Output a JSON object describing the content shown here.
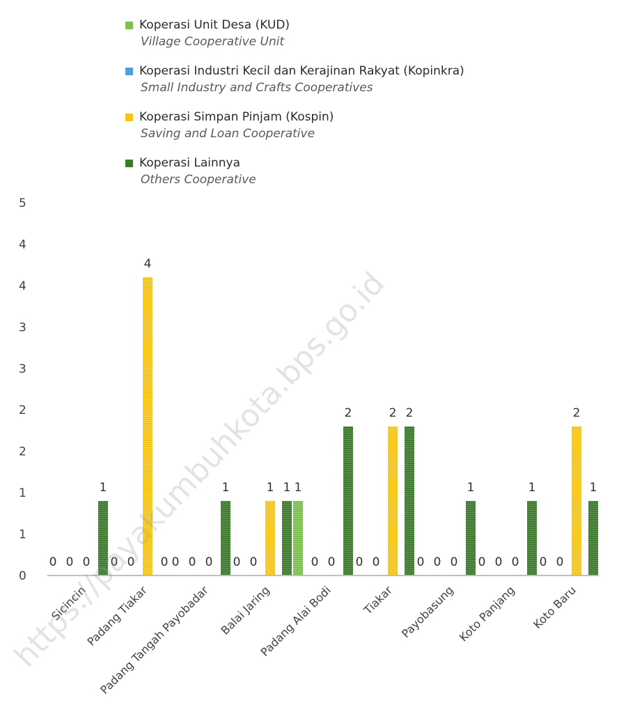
{
  "chart_data": {
    "type": "bar",
    "categories": [
      "Sicincin",
      "Padang Tiakar",
      "Padang Tangah Payobadar",
      "Balai Jaring",
      "Padang Alai Bodi",
      "Tiakar",
      "Payobasung",
      "Koto Panjang",
      "Koto Baru"
    ],
    "series": [
      {
        "name": "Koperasi Unit Desa (KUD)",
        "subtitle": "Village Cooperative Unit",
        "color": "#7dc04f",
        "values": [
          0,
          0,
          0,
          0,
          1,
          0,
          0,
          0,
          0
        ]
      },
      {
        "name": "Koperasi Industri Kecil dan Kerajinan Rakyat (Kopinkra)",
        "subtitle": "Small Industry and Crafts Cooperatives",
        "color": "#4f9fd9",
        "values": [
          0,
          0,
          0,
          0,
          0,
          0,
          0,
          0,
          0
        ]
      },
      {
        "name": "Koperasi Simpan Pinjam (Kospin)",
        "subtitle": "Saving and Loan Cooperative",
        "color": "#f5c518",
        "values": [
          0,
          4,
          0,
          1,
          0,
          2,
          0,
          0,
          2
        ]
      },
      {
        "name": "Koperasi Lainnya",
        "subtitle": "Others Cooperative",
        "color": "#3d7a2e",
        "values": [
          1,
          0,
          1,
          1,
          2,
          2,
          1,
          1,
          1
        ]
      }
    ],
    "data_labels": [
      [
        "0",
        "0",
        "0",
        "1"
      ],
      [
        "0",
        "0",
        "4",
        "0"
      ],
      [
        "0",
        "0",
        "0",
        "1"
      ],
      [
        "0",
        "0",
        "1",
        "1"
      ],
      [
        "1",
        "0",
        "0",
        "2"
      ],
      [
        "0",
        "0",
        "2",
        "2"
      ],
      [
        "0",
        "0",
        "0",
        "1"
      ],
      [
        "0",
        "0",
        "0",
        "1"
      ],
      [
        "0",
        "0",
        "2",
        "1"
      ]
    ],
    "y_tick_labels": [
      "0",
      "1",
      "1",
      "2",
      "2",
      "3",
      "3",
      "4",
      "4",
      "5"
    ],
    "ylim": [
      0,
      5
    ],
    "legend_position": "top",
    "grid": false
  },
  "watermark": "https://payakumbuhkota.bps.go.id"
}
